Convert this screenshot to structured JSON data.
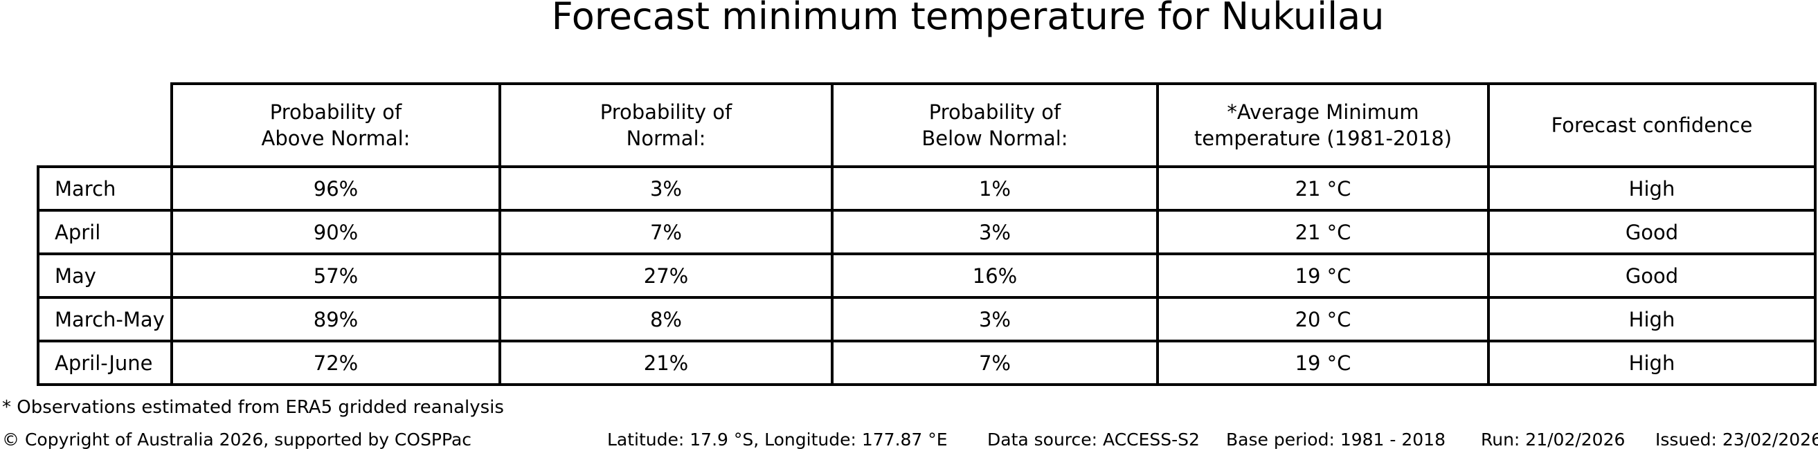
{
  "title": "Forecast minimum temperature for Nukuilau",
  "chart_data": {
    "type": "table",
    "title": "Forecast minimum temperature for Nukuilau",
    "row_header_column": "",
    "columns": [
      "Probability of\nAbove Normal:",
      "Probability of\nNormal:",
      "Probability of\nBelow Normal:",
      "*Average Minimum\ntemperature (1981-2018)",
      "Forecast confidence"
    ],
    "rows": [
      {
        "period": "March",
        "above": "96%",
        "normal": "3%",
        "below": "1%",
        "avg_min_temp": "21 °C",
        "confidence": "High"
      },
      {
        "period": "April",
        "above": "90%",
        "normal": "7%",
        "below": "3%",
        "avg_min_temp": "21 °C",
        "confidence": "Good"
      },
      {
        "period": "May",
        "above": "57%",
        "normal": "27%",
        "below": "16%",
        "avg_min_temp": "19 °C",
        "confidence": "Good"
      },
      {
        "period": "March-May",
        "above": "89%",
        "normal": "8%",
        "below": "3%",
        "avg_min_temp": "20 °C",
        "confidence": "High"
      },
      {
        "period": "April-June",
        "above": "72%",
        "normal": "21%",
        "below": "7%",
        "avg_min_temp": "19 °C",
        "confidence": "High"
      }
    ]
  },
  "footnote": "* Observations estimated from ERA5 gridded reanalysis",
  "footer": {
    "copyright": "© Copyright of Australia 2026, supported by COSPPac",
    "location": "Latitude: 17.9 °S, Longitude: 177.87 °E",
    "data_source": "Data source: ACCESS-S2",
    "base_period": "Base period: 1981 - 2018",
    "run": "Run: 21/02/2026",
    "issued": "Issued: 23/02/2026"
  },
  "colors": {
    "background": "#ffffff",
    "text": "#000000",
    "border": "#000000"
  }
}
